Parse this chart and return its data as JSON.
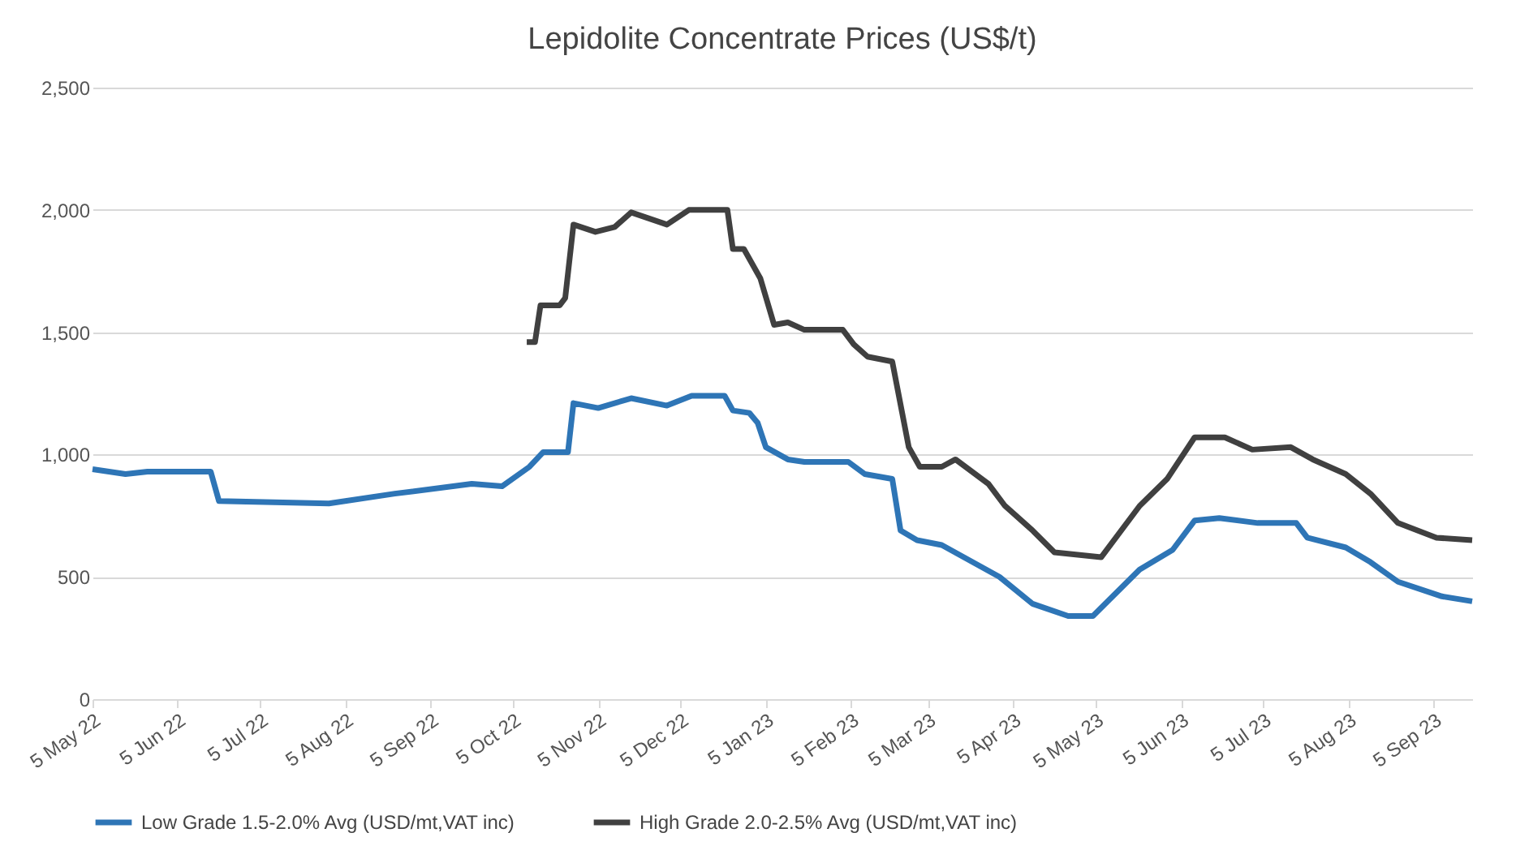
{
  "chart_data": {
    "type": "line",
    "title": "Lepidolite Concentrate Prices (US$/t)",
    "xlim": [
      "2022-05-05",
      "2023-09-19"
    ],
    "xticks": [
      {
        "value": "2022-05-05",
        "label": "5 May 22"
      },
      {
        "value": "2022-06-05",
        "label": "5 Jun 22"
      },
      {
        "value": "2022-07-05",
        "label": "5 Jul 22"
      },
      {
        "value": "2022-08-05",
        "label": "5 Aug 22"
      },
      {
        "value": "2022-09-05",
        "label": "5 Sep 22"
      },
      {
        "value": "2022-10-05",
        "label": "5 Oct 22"
      },
      {
        "value": "2022-11-05",
        "label": "5 Nov 22"
      },
      {
        "value": "2022-12-05",
        "label": "5 Dec 22"
      },
      {
        "value": "2023-01-05",
        "label": "5 Jan 23"
      },
      {
        "value": "2023-02-05",
        "label": "5 Feb 23"
      },
      {
        "value": "2023-03-05",
        "label": "5 Mar 23"
      },
      {
        "value": "2023-04-05",
        "label": "5 Apr 23"
      },
      {
        "value": "2023-05-05",
        "label": "5 May 23"
      },
      {
        "value": "2023-06-05",
        "label": "5 Jun 23"
      },
      {
        "value": "2023-07-05",
        "label": "5 Jul 23"
      },
      {
        "value": "2023-08-05",
        "label": "5 Aug 23"
      },
      {
        "value": "2023-09-05",
        "label": "5 Sep 23"
      }
    ],
    "ylim": [
      0,
      2500
    ],
    "yticks": [
      {
        "value": 0,
        "label": "0"
      },
      {
        "value": 500,
        "label": "500"
      },
      {
        "value": 1000,
        "label": "1,000"
      },
      {
        "value": 1500,
        "label": "1,500"
      },
      {
        "value": 2000,
        "label": "2,000"
      },
      {
        "value": 2500,
        "label": "2,500"
      }
    ],
    "grid": "y",
    "legend": "bottom",
    "marker": "none",
    "line_style": "solid",
    "series": [
      {
        "name": "Low Grade 1.5-2.0% Avg (USD/mt,VAT inc)",
        "color": "#2e75b6",
        "x": [
          "2022-05-05",
          "2022-05-17",
          "2022-05-25",
          "2022-06-17",
          "2022-06-20",
          "2022-07-30",
          "2022-08-23",
          "2022-09-20",
          "2022-10-01",
          "2022-10-11",
          "2022-10-16",
          "2022-10-25",
          "2022-10-27",
          "2022-11-05",
          "2022-11-17",
          "2022-11-30",
          "2022-12-09",
          "2022-12-21",
          "2022-12-24",
          "2022-12-30",
          "2023-01-02",
          "2023-01-05",
          "2023-01-13",
          "2023-01-19",
          "2023-02-04",
          "2023-02-10",
          "2023-02-20",
          "2023-02-23",
          "2023-03-01",
          "2023-03-10",
          "2023-03-31",
          "2023-04-12",
          "2023-04-25",
          "2023-05-04",
          "2023-05-21",
          "2023-06-02",
          "2023-06-10",
          "2023-06-19",
          "2023-07-03",
          "2023-07-17",
          "2023-07-21",
          "2023-08-04",
          "2023-08-13",
          "2023-08-23",
          "2023-09-08",
          "2023-09-19"
        ],
        "values": [
          940,
          920,
          930,
          930,
          810,
          800,
          840,
          880,
          870,
          950,
          1010,
          1010,
          1210,
          1190,
          1230,
          1200,
          1240,
          1240,
          1180,
          1170,
          1130,
          1030,
          980,
          970,
          970,
          920,
          900,
          690,
          650,
          630,
          500,
          390,
          340,
          340,
          530,
          610,
          730,
          740,
          720,
          720,
          660,
          620,
          560,
          480,
          420,
          400
        ]
      },
      {
        "name": "High Grade 2.0-2.5% Avg (USD/mt,VAT inc)",
        "color": "#404040",
        "x": [
          "2022-10-10",
          "2022-10-13",
          "2022-10-15",
          "2022-10-22",
          "2022-10-24",
          "2022-10-27",
          "2022-11-04",
          "2022-11-11",
          "2022-11-17",
          "2022-11-30",
          "2022-12-08",
          "2022-12-22",
          "2022-12-24",
          "2022-12-28",
          "2023-01-03",
          "2023-01-08",
          "2023-01-13",
          "2023-01-19",
          "2023-02-02",
          "2023-02-06",
          "2023-02-11",
          "2023-02-20",
          "2023-02-26",
          "2023-03-02",
          "2023-03-10",
          "2023-03-15",
          "2023-03-27",
          "2023-04-02",
          "2023-04-12",
          "2023-04-20",
          "2023-05-07",
          "2023-05-21",
          "2023-05-31",
          "2023-06-10",
          "2023-06-21",
          "2023-07-01",
          "2023-07-15",
          "2023-07-23",
          "2023-08-04",
          "2023-08-13",
          "2023-08-23",
          "2023-09-06",
          "2023-09-19"
        ],
        "values": [
          1460,
          1460,
          1610,
          1610,
          1640,
          1940,
          1910,
          1930,
          1990,
          1940,
          2000,
          2000,
          1840,
          1840,
          1720,
          1530,
          1540,
          1510,
          1510,
          1450,
          1400,
          1380,
          1030,
          950,
          950,
          980,
          880,
          790,
          690,
          600,
          580,
          790,
          900,
          1070,
          1070,
          1020,
          1030,
          980,
          920,
          840,
          720,
          660,
          650
        ]
      }
    ]
  }
}
